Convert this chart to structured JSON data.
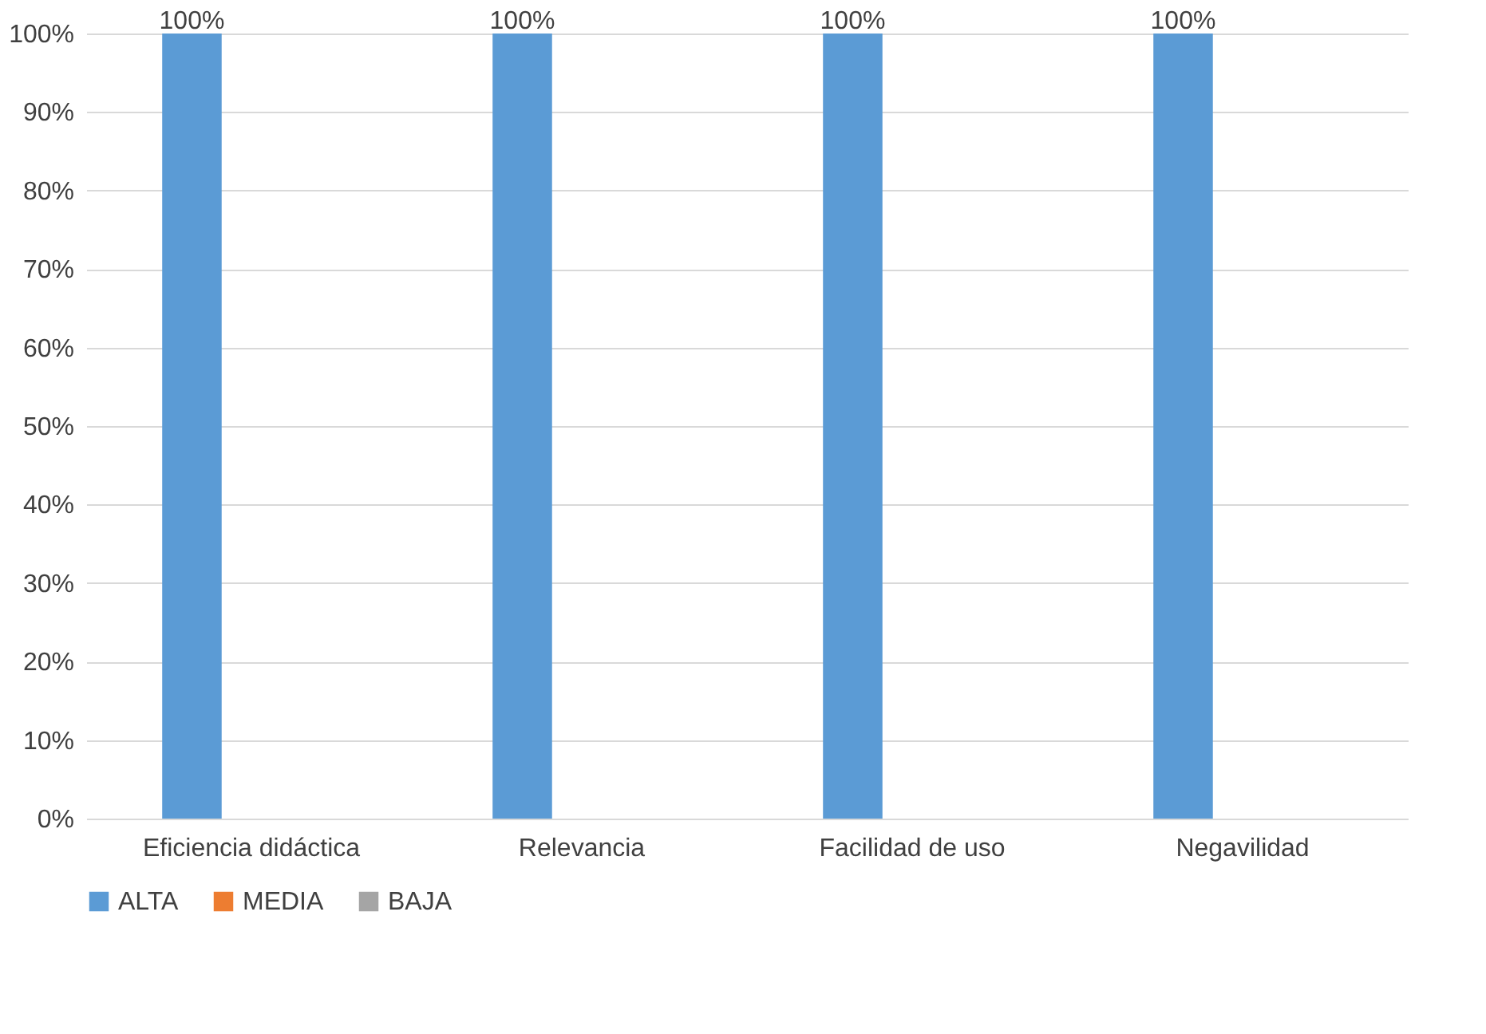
{
  "chart_data": {
    "type": "bar",
    "categories": [
      "Eficiencia didáctica",
      "Relevancia",
      "Facilidad de uso",
      "Negavilidad"
    ],
    "series": [
      {
        "name": "ALTA",
        "color": "#5b9bd5",
        "values": [
          100,
          100,
          100,
          100
        ],
        "value_labels": [
          "100%",
          "100%",
          "100%",
          "100%"
        ]
      },
      {
        "name": "MEDIA",
        "color": "#ed7d31",
        "values": [
          0,
          0,
          0,
          0
        ]
      },
      {
        "name": "BAJA",
        "color": "#a5a5a5",
        "values": [
          0,
          0,
          0,
          0
        ]
      }
    ],
    "ylim": [
      0,
      100
    ],
    "yticks": [
      {
        "value": 0,
        "label": "0%"
      },
      {
        "value": 10,
        "label": "10%"
      },
      {
        "value": 20,
        "label": "20%"
      },
      {
        "value": 30,
        "label": "30%"
      },
      {
        "value": 40,
        "label": "40%"
      },
      {
        "value": 50,
        "label": "50%"
      },
      {
        "value": 60,
        "label": "60%"
      },
      {
        "value": 70,
        "label": "70%"
      },
      {
        "value": 80,
        "label": "80%"
      },
      {
        "value": 90,
        "label": "90%"
      },
      {
        "value": 100,
        "label": "100%"
      }
    ],
    "grid": "y",
    "legend": "bottom"
  }
}
